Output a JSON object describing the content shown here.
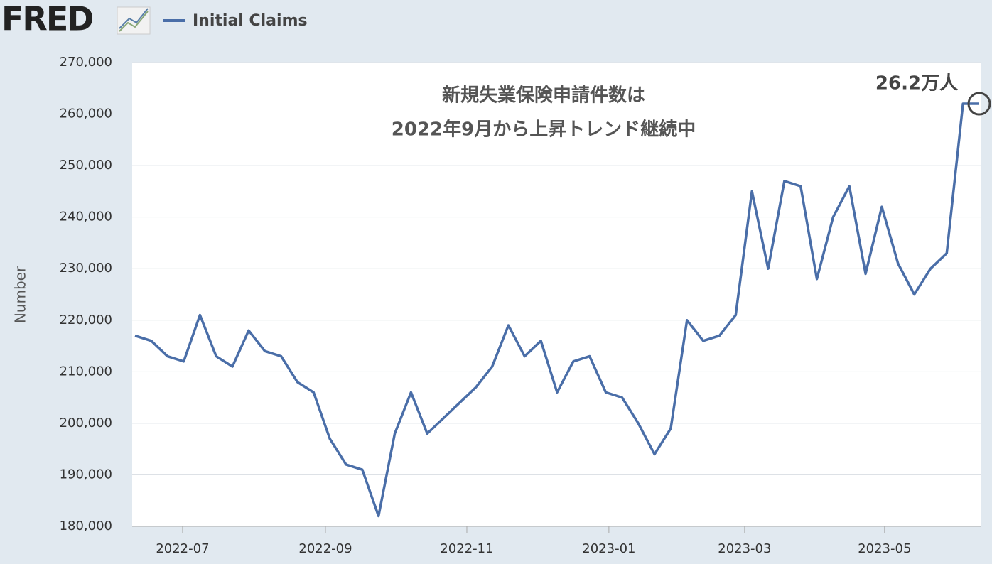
{
  "logo": "FRED",
  "chart_data": {
    "type": "line",
    "y_label": "Number",
    "annotations": [
      "新規失業保険申請件数は",
      "2022年9月から上昇トレンド継続中",
      "26.2万人"
    ],
    "series": [
      {
        "name": "Initial Claims",
        "color": "#4a6ea8",
        "values": [
          217000,
          216000,
          213000,
          212000,
          221000,
          213000,
          211000,
          218000,
          214000,
          213000,
          208000,
          206000,
          197000,
          192000,
          191000,
          182000,
          198000,
          206000,
          198000,
          201000,
          204000,
          207000,
          211000,
          219000,
          213000,
          216000,
          206000,
          212000,
          213000,
          206000,
          205000,
          200000,
          194000,
          199000,
          220000,
          216000,
          217000,
          221000,
          245000,
          230000,
          247000,
          246000,
          228000,
          240000,
          246000,
          229000,
          242000,
          231000,
          225000,
          230000,
          233000,
          262000,
          262000
        ]
      }
    ],
    "xlim": [
      0,
      52
    ],
    "xticks": [
      {
        "value": 2.93,
        "label": "2022-07"
      },
      {
        "value": 11.73,
        "label": "2022-09"
      },
      {
        "value": 20.44,
        "label": "2022-11"
      },
      {
        "value": 29.19,
        "label": "2023-01"
      },
      {
        "value": 37.55,
        "label": "2023-03"
      },
      {
        "value": 46.17,
        "label": "2023-05"
      }
    ],
    "ylim": [
      180000,
      270000
    ],
    "yticks": [
      {
        "value": 180000,
        "label": "180,000"
      },
      {
        "value": 190000,
        "label": "190,000"
      },
      {
        "value": 200000,
        "label": "200,000"
      },
      {
        "value": 210000,
        "label": "210,000"
      },
      {
        "value": 220000,
        "label": "220,000"
      },
      {
        "value": 230000,
        "label": "230,000"
      },
      {
        "value": 240000,
        "label": "240,000"
      },
      {
        "value": 250000,
        "label": "250,000"
      },
      {
        "value": 260000,
        "label": "260,000"
      },
      {
        "value": 270000,
        "label": "270,000"
      }
    ],
    "grid": true
  }
}
